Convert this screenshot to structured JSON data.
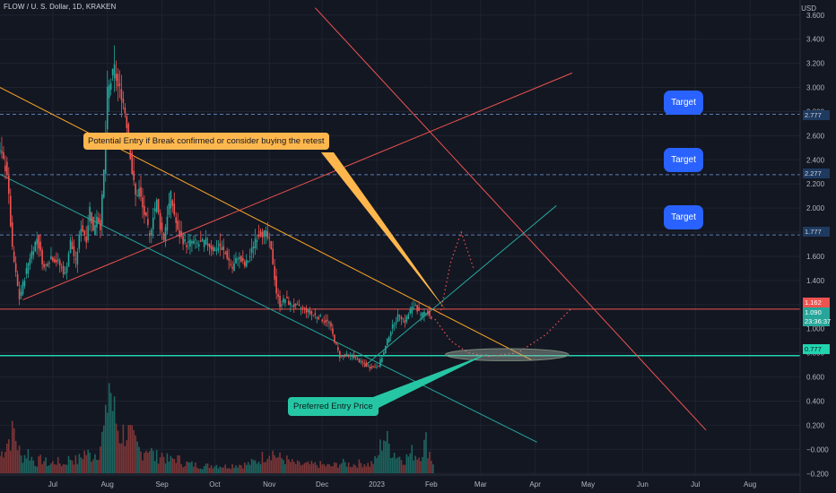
{
  "header": {
    "title": "FLOW / U. S. Dollar, 1D, KRAKEN",
    "currency": "USD"
  },
  "annotations": {
    "potential_entry": "Potential Entry if Break confirmed or consider buying the retest",
    "preferred_entry": "Preferred Entry Price",
    "targets": [
      "Target",
      "Target",
      "Target"
    ]
  },
  "price_tags": {
    "target_high": "2.777",
    "target_mid": "2.277",
    "target_low": "1.777",
    "resistance": "1.162",
    "last_price": "1.090",
    "countdown": "23:36:37",
    "support": "0.777"
  },
  "colors": {
    "background": "#131722",
    "up": "#26a69a",
    "down": "#ef5350",
    "trendline_orange": "#ffa726",
    "trendline_red": "#ef5350",
    "trendline_teal": "#26a69a",
    "support_line": "#22d3b0",
    "resistance_line": "#ef5350",
    "target_button": "#2962ff"
  },
  "chart_data": {
    "type": "candlestick",
    "title": "FLOW / U. S. Dollar, 1D, KRAKEN",
    "ylabel": "USD",
    "ylim": [
      -0.25,
      3.68
    ],
    "y_ticks": [
      3.6,
      3.4,
      3.2,
      3.0,
      2.8,
      2.6,
      2.4,
      2.2,
      2.0,
      1.8,
      1.6,
      1.4,
      1.2,
      1.0,
      0.8,
      0.6,
      0.4,
      0.2,
      -0.0,
      -0.2
    ],
    "y_tick_labels": [
      "3.600",
      "3.400",
      "3.200",
      "3.000",
      "2.800",
      "2.600",
      "2.400",
      "2.200",
      "2.000",
      "1.800",
      "1.600",
      "1.400",
      "1.200",
      "1.000",
      "0.800",
      "0.600",
      "0.400",
      "0.200",
      "−0.000",
      "−0.200"
    ],
    "x_tick_labels": [
      "Jul",
      "Aug",
      "Sep",
      "Oct",
      "Nov",
      "Dec",
      "2023",
      "Feb",
      "Mar",
      "Apr",
      "May",
      "Jun",
      "Jul",
      "Aug"
    ],
    "x_tick_days": [
      30,
      61,
      92,
      122,
      153,
      183,
      214,
      245,
      273,
      304,
      334,
      365,
      395,
      426
    ],
    "x_range_days": [
      0,
      455
    ],
    "horizontal_levels": [
      2.777,
      2.277,
      1.777,
      1.162,
      0.777
    ],
    "current_price": 1.09,
    "price_path": [
      [
        0,
        2.5
      ],
      [
        5,
        2.3
      ],
      [
        8,
        1.65
      ],
      [
        12,
        1.25
      ],
      [
        18,
        1.6
      ],
      [
        22,
        1.75
      ],
      [
        26,
        1.5
      ],
      [
        30,
        1.6
      ],
      [
        34,
        1.55
      ],
      [
        38,
        1.45
      ],
      [
        41,
        1.72
      ],
      [
        44,
        1.55
      ],
      [
        47,
        1.85
      ],
      [
        50,
        1.75
      ],
      [
        52,
        2.0
      ],
      [
        54,
        1.8
      ],
      [
        56,
        1.95
      ],
      [
        58,
        1.85
      ],
      [
        60,
        2.3
      ],
      [
        62,
        2.95
      ],
      [
        64,
        3.05
      ],
      [
        66,
        3.15
      ],
      [
        68,
        3.0
      ],
      [
        70,
        2.95
      ],
      [
        72,
        2.8
      ],
      [
        74,
        2.6
      ],
      [
        76,
        2.3
      ],
      [
        78,
        2.1
      ],
      [
        80,
        2.15
      ],
      [
        82,
        2.0
      ],
      [
        84,
        1.9
      ],
      [
        86,
        1.75
      ],
      [
        88,
        1.95
      ],
      [
        90,
        2.05
      ],
      [
        92,
        1.85
      ],
      [
        94,
        1.75
      ],
      [
        96,
        1.95
      ],
      [
        98,
        2.1
      ],
      [
        100,
        1.95
      ],
      [
        102,
        1.8
      ],
      [
        104,
        1.75
      ],
      [
        107,
        1.7
      ],
      [
        110,
        1.72
      ],
      [
        114,
        1.7
      ],
      [
        118,
        1.72
      ],
      [
        122,
        1.66
      ],
      [
        126,
        1.68
      ],
      [
        130,
        1.6
      ],
      [
        133,
        1.5
      ],
      [
        136,
        1.6
      ],
      [
        140,
        1.52
      ],
      [
        143,
        1.6
      ],
      [
        146,
        1.75
      ],
      [
        149,
        1.8
      ],
      [
        152,
        1.78
      ],
      [
        154,
        1.72
      ],
      [
        156,
        1.55
      ],
      [
        158,
        1.3
      ],
      [
        160,
        1.2
      ],
      [
        163,
        1.25
      ],
      [
        166,
        1.2
      ],
      [
        170,
        1.18
      ],
      [
        174,
        1.16
      ],
      [
        178,
        1.12
      ],
      [
        182,
        1.1
      ],
      [
        185,
        1.07
      ],
      [
        188,
        1.05
      ],
      [
        191,
        0.9
      ],
      [
        194,
        0.77
      ],
      [
        198,
        0.78
      ],
      [
        202,
        0.77
      ],
      [
        206,
        0.72
      ],
      [
        210,
        0.69
      ],
      [
        213,
        0.68
      ],
      [
        216,
        0.7
      ],
      [
        219,
        0.8
      ],
      [
        222,
        0.95
      ],
      [
        225,
        1.05
      ],
      [
        228,
        1.12
      ],
      [
        231,
        1.06
      ],
      [
        234,
        1.15
      ],
      [
        237,
        1.2
      ],
      [
        240,
        1.1
      ],
      [
        243,
        1.15
      ],
      [
        246,
        1.09
      ]
    ],
    "volume_ylim": [
      0,
      0.62
    ],
    "volume_path": [
      [
        0,
        0.1
      ],
      [
        4,
        0.18
      ],
      [
        8,
        0.24
      ],
      [
        12,
        0.09
      ],
      [
        16,
        0.12
      ],
      [
        20,
        0.06
      ],
      [
        24,
        0.08
      ],
      [
        28,
        0.05
      ],
      [
        32,
        0.07
      ],
      [
        36,
        0.05
      ],
      [
        40,
        0.09
      ],
      [
        44,
        0.07
      ],
      [
        48,
        0.12
      ],
      [
        52,
        0.1
      ],
      [
        56,
        0.13
      ],
      [
        60,
        0.28
      ],
      [
        62,
        0.55
      ],
      [
        64,
        0.38
      ],
      [
        66,
        0.3
      ],
      [
        68,
        0.22
      ],
      [
        72,
        0.24
      ],
      [
        76,
        0.18
      ],
      [
        80,
        0.12
      ],
      [
        84,
        0.16
      ],
      [
        88,
        0.09
      ],
      [
        92,
        0.11
      ],
      [
        96,
        0.07
      ],
      [
        100,
        0.09
      ],
      [
        104,
        0.06
      ],
      [
        110,
        0.05
      ],
      [
        116,
        0.04
      ],
      [
        122,
        0.05
      ],
      [
        128,
        0.04
      ],
      [
        134,
        0.05
      ],
      [
        140,
        0.05
      ],
      [
        146,
        0.07
      ],
      [
        150,
        0.1
      ],
      [
        154,
        0.13
      ],
      [
        158,
        0.09
      ],
      [
        162,
        0.08
      ],
      [
        166,
        0.06
      ],
      [
        170,
        0.05
      ],
      [
        176,
        0.05
      ],
      [
        182,
        0.05
      ],
      [
        188,
        0.04
      ],
      [
        194,
        0.06
      ],
      [
        200,
        0.05
      ],
      [
        206,
        0.06
      ],
      [
        210,
        0.05
      ],
      [
        214,
        0.08
      ],
      [
        218,
        0.22
      ],
      [
        222,
        0.14
      ],
      [
        226,
        0.1
      ],
      [
        230,
        0.08
      ],
      [
        234,
        0.12
      ],
      [
        238,
        0.1
      ],
      [
        242,
        0.18
      ],
      [
        246,
        0.06
      ]
    ],
    "trendlines": [
      {
        "name": "descending-resistance",
        "color": "#ffa726",
        "points": [
          [
            0,
            3.0
          ],
          [
            302,
            0.74
          ]
        ]
      },
      {
        "name": "rising-red",
        "color": "#ef5350",
        "points": [
          [
            13,
            1.24
          ],
          [
            325,
            3.12
          ]
        ]
      },
      {
        "name": "falling-red",
        "color": "#ef5350",
        "points": [
          [
            179,
            3.66
          ],
          [
            401,
            0.16
          ]
        ]
      },
      {
        "name": "lower-channel",
        "color": "#26a69a",
        "points": [
          [
            0,
            2.28
          ],
          [
            305,
            0.06
          ]
        ]
      },
      {
        "name": "rising-support",
        "color": "#26a69a",
        "points": [
          [
            207,
            0.69
          ],
          [
            316,
            2.02
          ]
        ]
      }
    ],
    "projections": [
      {
        "name": "bullish-breakout-path",
        "color": "#ef5350",
        "points": [
          [
            250,
            1.12
          ],
          [
            256,
            1.55
          ],
          [
            262,
            1.8
          ],
          [
            269,
            1.5
          ]
        ]
      },
      {
        "name": "retest-path",
        "color": "#ef5350",
        "points": [
          [
            247,
            1.08
          ],
          [
            256,
            0.9
          ],
          [
            266,
            0.8
          ],
          [
            278,
            0.77
          ],
          [
            294,
            0.8
          ],
          [
            310,
            0.95
          ],
          [
            324,
            1.16
          ]
        ]
      }
    ],
    "entry_zone": {
      "center_day": 288,
      "center_price": 0.785,
      "half_width_days": 35,
      "half_height": 0.05
    }
  }
}
